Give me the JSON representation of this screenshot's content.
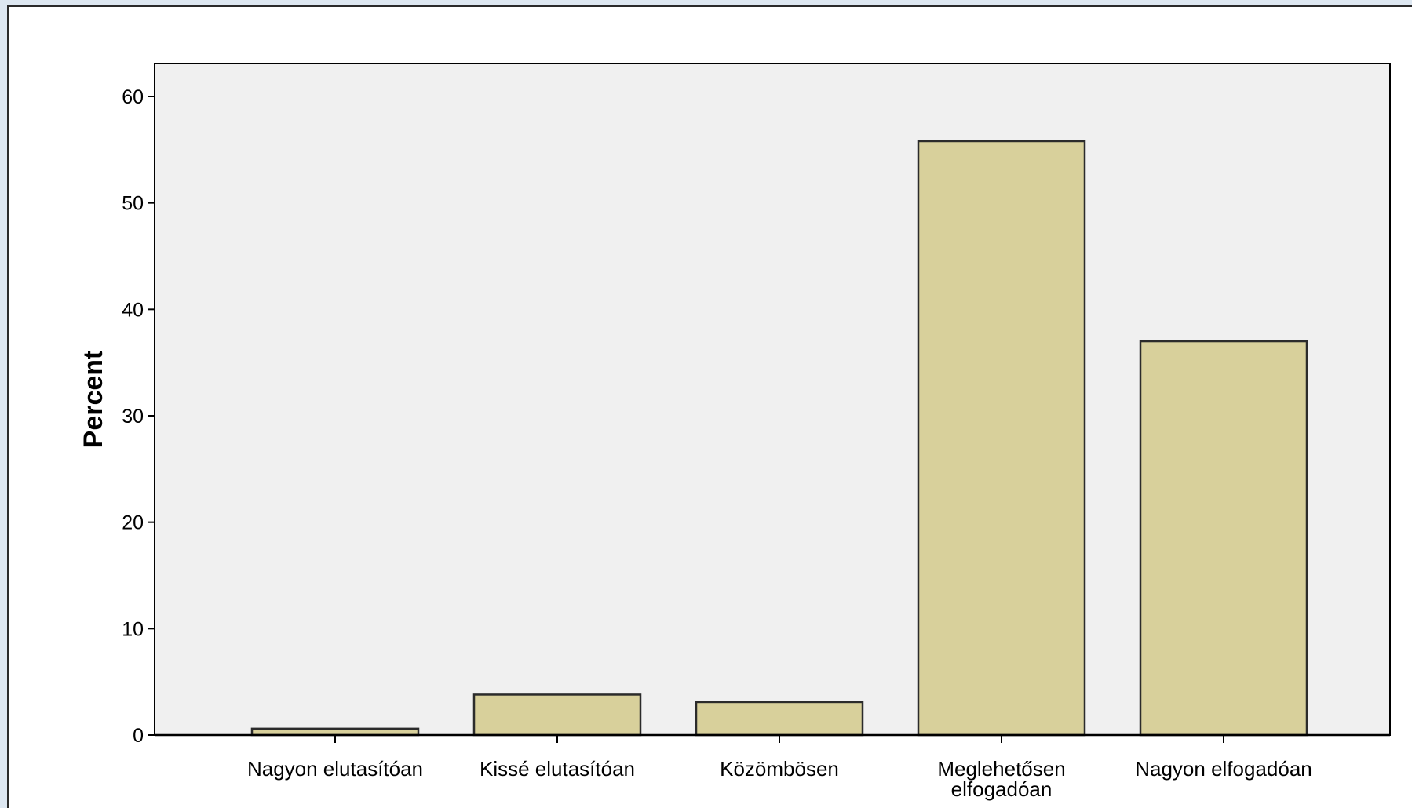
{
  "chart_data": {
    "type": "bar",
    "categories": [
      [
        "Nagyon elutasítóan"
      ],
      [
        "Kissé elutasítóan"
      ],
      [
        "Közömbösen"
      ],
      [
        "Meglehetősen",
        "elfogadóan"
      ],
      [
        "Nagyon elfogadóan"
      ]
    ],
    "values": [
      0.6,
      3.8,
      3.1,
      55.8,
      37.0
    ],
    "ylabel": "Percent",
    "xlabel": "",
    "title": "",
    "ylim": [
      0,
      63
    ],
    "yticks": [
      "0",
      "10",
      "20",
      "30",
      "40",
      "50",
      "60"
    ],
    "grid": false,
    "colors": {
      "plot_background": "#f0f0f0",
      "bar_fill": "#d8d09b",
      "bar_stroke": "#2b2b2b",
      "axis": "#000000"
    }
  }
}
